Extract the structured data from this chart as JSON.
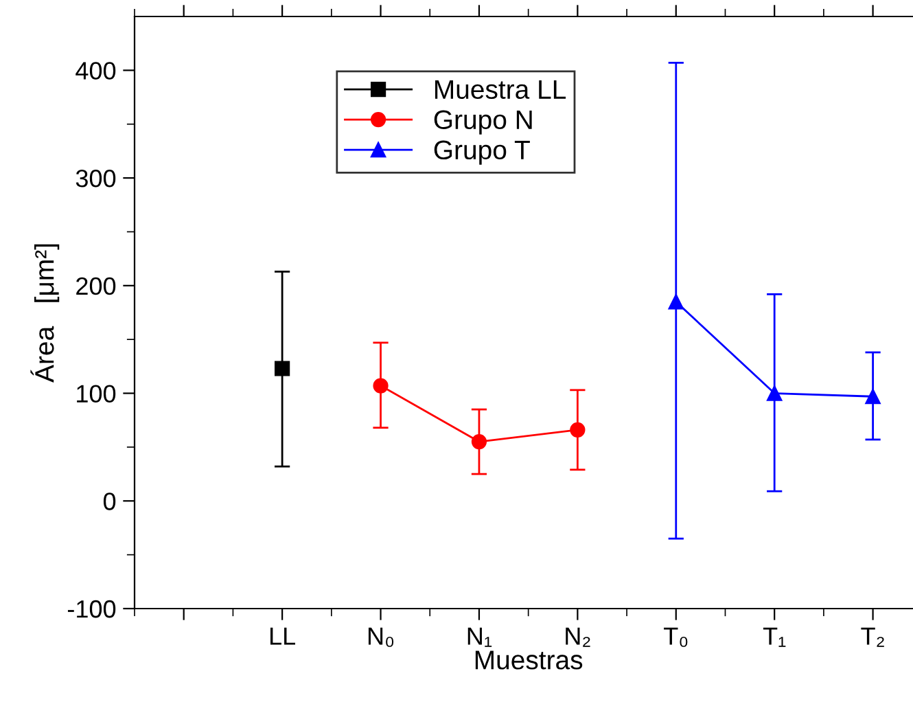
{
  "chart_data": {
    "type": "line",
    "xlabel": "Muestras",
    "ylabel": "Área   [μm²]",
    "categories": [
      null,
      "LL",
      "N₀",
      "N₁",
      "N₂",
      "T₀",
      "T₁",
      "T₂"
    ],
    "series": [
      {
        "name": "Muestra LL",
        "color": "#000000",
        "marker": "square",
        "values": [
          null,
          123,
          null,
          null,
          null,
          null,
          null,
          null
        ],
        "errors": [
          null,
          [
            32,
            213
          ],
          null,
          null,
          null,
          null,
          null,
          null
        ]
      },
      {
        "name": "Grupo N",
        "color": "#ff0000",
        "marker": "circle",
        "values": [
          null,
          null,
          107,
          55,
          66,
          null,
          null,
          null
        ],
        "errors": [
          null,
          null,
          [
            68,
            147
          ],
          [
            25,
            85
          ],
          [
            29,
            103
          ],
          null,
          null,
          null
        ]
      },
      {
        "name": "Grupo T",
        "color": "#0000ff",
        "marker": "triangle",
        "values": [
          null,
          null,
          null,
          null,
          null,
          185,
          100,
          97
        ],
        "errors": [
          null,
          null,
          null,
          null,
          null,
          [
            -35,
            407
          ],
          [
            9,
            192
          ],
          [
            57,
            138
          ]
        ]
      }
    ],
    "ylim": [
      -100,
      450
    ],
    "yticks": [
      -100,
      0,
      100,
      200,
      300,
      400
    ],
    "grid": false,
    "legend": "top left"
  }
}
